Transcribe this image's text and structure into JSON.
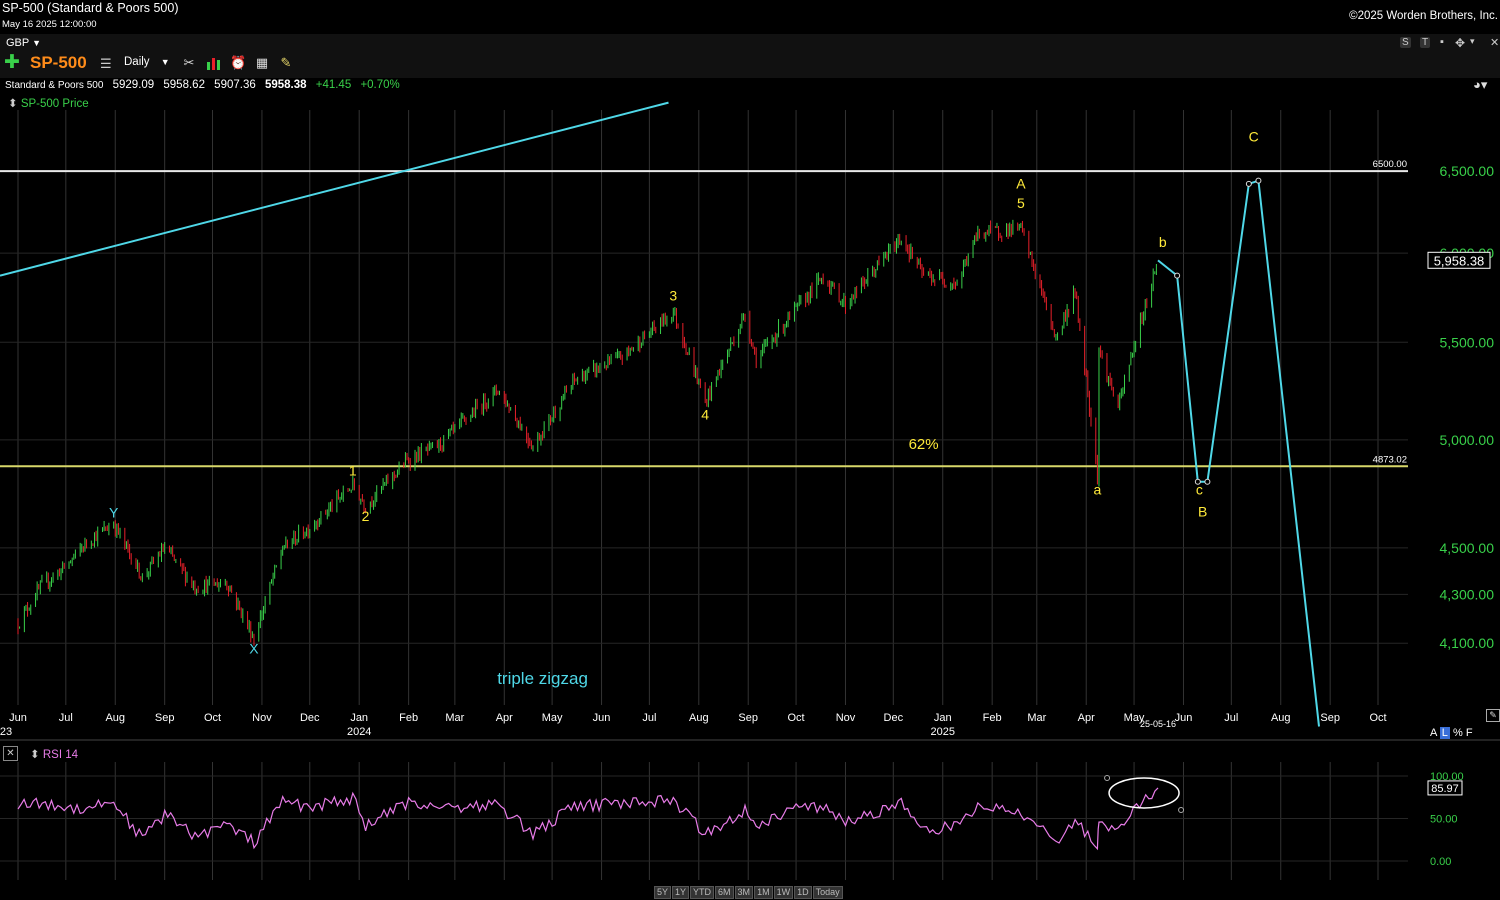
{
  "header": {
    "title": "SP-500 (Standard & Poors 500)",
    "timestamp": "May 16 2025 12:00:00",
    "copyright": "©2025 Worden Brothers, Inc.",
    "currency": "GBP",
    "symbol": "SP-500",
    "period": "Daily"
  },
  "quote": {
    "name": "Standard & Poors 500",
    "open": "5929.09",
    "high": "5958.62",
    "low": "5907.36",
    "close": "5958.38",
    "change": "+41.45",
    "change_pct": "+0.70%"
  },
  "panels": {
    "price_label": "SP-500 Price",
    "rsi_label": "RSI 14",
    "axis_options": [
      "A",
      "L",
      "%",
      "F"
    ],
    "range_buttons": [
      "5Y",
      "1Y",
      "YTD",
      "6M",
      "3M",
      "1M",
      "1W",
      "1D",
      "Today"
    ],
    "window_buttons": [
      "S",
      "T",
      "▾",
      "✥",
      "▾",
      "▭",
      "✕"
    ]
  },
  "colors": {
    "up": "#39d04a",
    "down": "#e8202a",
    "wave_label": "#ffea3a",
    "projection": "#4fd8e8",
    "support": "#d8d86a",
    "resistance": "#e8e8e8",
    "rsi": "#e87ce8"
  },
  "chart_data": [
    {
      "type": "line",
      "panel": "price",
      "title": "SP-500 Price",
      "log_scale": true,
      "grid": true,
      "ylim": [
        3860,
        6900
      ],
      "y_ticks": [
        "6,500.00",
        "6,000.00",
        "5,500.00",
        "5,000.00",
        "4,500.00",
        "4,300.00",
        "4,100.00"
      ],
      "x_ticks": [
        {
          "month": "Jun",
          "year": "23"
        },
        {
          "month": "Jul"
        },
        {
          "month": "Aug"
        },
        {
          "month": "Sep"
        },
        {
          "month": "Oct"
        },
        {
          "month": "Nov"
        },
        {
          "month": "Dec"
        },
        {
          "month": "Jan",
          "year": "2024"
        },
        {
          "month": "Feb"
        },
        {
          "month": "Mar"
        },
        {
          "month": "Apr"
        },
        {
          "month": "May"
        },
        {
          "month": "Jun"
        },
        {
          "month": "Jul"
        },
        {
          "month": "Aug"
        },
        {
          "month": "Sep"
        },
        {
          "month": "Oct"
        },
        {
          "month": "Nov"
        },
        {
          "month": "Dec"
        },
        {
          "month": "Jan",
          "year": "2025"
        },
        {
          "month": "Feb"
        },
        {
          "month": "Mar"
        },
        {
          "month": "Apr"
        },
        {
          "month": "May"
        },
        {
          "month": "Jun"
        },
        {
          "month": "Jul"
        },
        {
          "month": "Aug"
        },
        {
          "month": "Sep"
        },
        {
          "month": "Oct"
        }
      ],
      "current_date_label": "25-05-16",
      "last_price_label": "5,958.38",
      "price_path": [
        [
          "2023-06-01",
          4180
        ],
        [
          "2023-06-15",
          4330
        ],
        [
          "2023-07-01",
          4420
        ],
        [
          "2023-07-15",
          4530
        ],
        [
          "2023-07-31",
          4607
        ],
        [
          "2023-08-18",
          4370
        ],
        [
          "2023-09-01",
          4500
        ],
        [
          "2023-09-20",
          4330
        ],
        [
          "2023-10-10",
          4350
        ],
        [
          "2023-10-27",
          4117
        ],
        [
          "2023-11-14",
          4500
        ],
        [
          "2023-12-01",
          4590
        ],
        [
          "2023-12-28",
          4783
        ],
        [
          "2024-01-05",
          4688
        ],
        [
          "2024-01-31",
          4900
        ],
        [
          "2024-02-20",
          4975
        ],
        [
          "2024-03-28",
          5254
        ],
        [
          "2024-04-19",
          4967
        ],
        [
          "2024-05-15",
          5300
        ],
        [
          "2024-06-15",
          5430
        ],
        [
          "2024-07-16",
          5667
        ],
        [
          "2024-08-05",
          5186
        ],
        [
          "2024-08-30",
          5650
        ],
        [
          "2024-09-06",
          5408
        ],
        [
          "2024-10-18",
          5865
        ],
        [
          "2024-11-01",
          5705
        ],
        [
          "2024-12-06",
          6090
        ],
        [
          "2024-12-20",
          5870
        ],
        [
          "2025-01-10",
          5827
        ],
        [
          "2025-01-23",
          6118
        ],
        [
          "2025-02-19",
          6147
        ],
        [
          "2025-03-13",
          5521
        ],
        [
          "2025-03-25",
          5776
        ],
        [
          "2025-04-08",
          4835
        ],
        [
          "2025-04-09",
          5456
        ],
        [
          "2025-04-21",
          5158
        ],
        [
          "2025-05-16",
          5958
        ]
      ],
      "projection_path": [
        [
          "2025-05-16",
          5958
        ],
        [
          "2025-05-28",
          5870
        ],
        [
          "2025-06-10",
          4800
        ],
        [
          "2025-06-16",
          4800
        ],
        [
          "2025-07-12",
          6420
        ],
        [
          "2025-07-18",
          6440
        ],
        [
          "2025-08-25",
          3780
        ]
      ],
      "trend_lines": [
        {
          "name": "cyan-channel",
          "points": [
            [
              "2023-06-01",
              5870
            ],
            [
              "2024-07-13",
              6950
            ]
          ]
        }
      ],
      "horizontal_lines": [
        {
          "value": 6500,
          "label": "6500.00"
        },
        {
          "value": 4873.02,
          "label": "4873.02"
        }
      ],
      "wave_labels": [
        {
          "text": "Y",
          "x": "2023-07-31",
          "y": 4635,
          "color": "cyan"
        },
        {
          "text": "X",
          "x": "2023-10-27",
          "y": 4060,
          "color": "cyan"
        },
        {
          "text": "1",
          "x": "2023-12-28",
          "y": 4830,
          "color": "yellow"
        },
        {
          "text": "2",
          "x": "2024-01-05",
          "y": 4620,
          "color": "yellow"
        },
        {
          "text": "3",
          "x": "2024-07-16",
          "y": 5730,
          "color": "yellow"
        },
        {
          "text": "4",
          "x": "2024-08-05",
          "y": 5100,
          "color": "yellow"
        },
        {
          "text": "A",
          "x": "2025-02-19",
          "y": 6390,
          "color": "yellow"
        },
        {
          "text": "5",
          "x": "2025-02-19",
          "y": 6270,
          "color": "yellow"
        },
        {
          "text": "a",
          "x": "2025-04-08",
          "y": 4740,
          "color": "yellow"
        },
        {
          "text": "b",
          "x": "2025-05-19",
          "y": 6035,
          "color": "yellow"
        },
        {
          "text": "c",
          "x": "2025-06-11",
          "y": 4740,
          "color": "yellow"
        },
        {
          "text": "B",
          "x": "2025-06-13",
          "y": 4640,
          "color": "yellow"
        },
        {
          "text": "C",
          "x": "2025-07-15",
          "y": 6690,
          "color": "yellow"
        }
      ],
      "annotations": [
        {
          "text": "62%",
          "x": "2024-12-20",
          "y": 4955
        },
        {
          "text": "triple zigzag",
          "x": "2024-04-25",
          "y": 3940
        }
      ]
    },
    {
      "type": "line",
      "panel": "rsi",
      "title": "RSI 14",
      "ylim": [
        0,
        100
      ],
      "y_ticks": [
        "100.00",
        "50.00",
        "0.00"
      ],
      "last_value_label": "85.97",
      "path": [
        [
          "2023-06-01",
          68
        ],
        [
          "2023-06-20",
          66
        ],
        [
          "2023-07-10",
          62
        ],
        [
          "2023-07-31",
          70
        ],
        [
          "2023-08-18",
          26
        ],
        [
          "2023-09-01",
          55
        ],
        [
          "2023-09-20",
          30
        ],
        [
          "2023-10-10",
          42
        ],
        [
          "2023-10-27",
          22
        ],
        [
          "2023-11-14",
          70
        ],
        [
          "2023-12-01",
          63
        ],
        [
          "2023-12-28",
          74
        ],
        [
          "2024-01-05",
          42
        ],
        [
          "2024-02-01",
          68
        ],
        [
          "2024-03-01",
          64
        ],
        [
          "2024-03-28",
          66
        ],
        [
          "2024-04-19",
          32
        ],
        [
          "2024-05-15",
          64
        ],
        [
          "2024-06-15",
          68
        ],
        [
          "2024-07-16",
          72
        ],
        [
          "2024-08-05",
          32
        ],
        [
          "2024-08-30",
          60
        ],
        [
          "2024-09-06",
          42
        ],
        [
          "2024-10-01",
          62
        ],
        [
          "2024-10-18",
          64
        ],
        [
          "2024-11-01",
          44
        ],
        [
          "2024-12-06",
          68
        ],
        [
          "2024-12-20",
          34
        ],
        [
          "2025-01-10",
          42
        ],
        [
          "2025-01-23",
          64
        ],
        [
          "2025-02-19",
          58
        ],
        [
          "2025-03-13",
          24
        ],
        [
          "2025-03-25",
          48
        ],
        [
          "2025-04-08",
          18
        ],
        [
          "2025-04-09",
          44
        ],
        [
          "2025-04-21",
          40
        ],
        [
          "2025-05-16",
          86
        ]
      ]
    }
  ]
}
